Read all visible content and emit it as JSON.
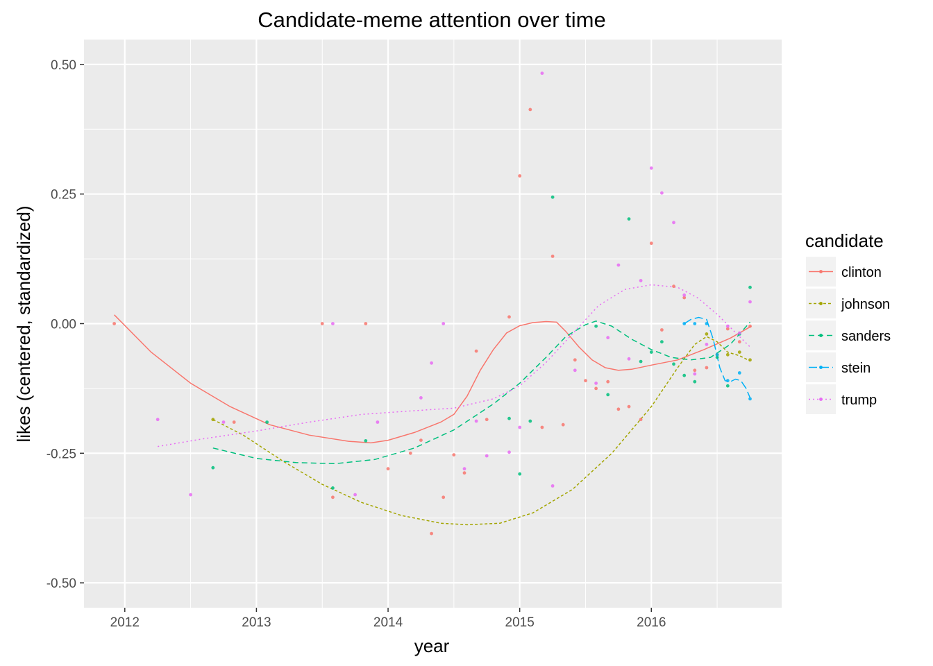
{
  "chart_data": {
    "type": "scatter",
    "title": "Candidate-meme attention over time",
    "xlabel": "year",
    "ylabel": "likes (centered, standardized)",
    "xlim": [
      2011.69,
      2016.99
    ],
    "ylim": [
      -0.548,
      0.548
    ],
    "x_ticks": [
      2012,
      2013,
      2014,
      2015,
      2016
    ],
    "x_tick_labels": [
      "2012",
      "2013",
      "2014",
      "2015",
      "2016"
    ],
    "y_ticks": [
      0.5,
      0.25,
      0.0,
      -0.25,
      -0.5
    ],
    "y_tick_labels": [
      "0.50",
      "0.25",
      "0.00",
      "-0.25",
      "-0.50"
    ],
    "grid": true,
    "legend": {
      "title": "candidate",
      "position": "right"
    },
    "series": [
      {
        "name": "clinton",
        "color": "#F8766D",
        "dash": "none",
        "points": [
          [
            2011.92,
            0.0
          ],
          [
            2012.83,
            -0.19
          ],
          [
            2013.5,
            0.0
          ],
          [
            2013.58,
            -0.335
          ],
          [
            2013.83,
            0.0
          ],
          [
            2014.0,
            -0.28
          ],
          [
            2014.17,
            -0.25
          ],
          [
            2014.25,
            -0.225
          ],
          [
            2014.33,
            -0.405
          ],
          [
            2014.42,
            -0.335
          ],
          [
            2014.5,
            -0.253
          ],
          [
            2014.58,
            -0.288
          ],
          [
            2014.67,
            -0.053
          ],
          [
            2014.75,
            -0.185
          ],
          [
            2014.92,
            0.013
          ],
          [
            2015.0,
            0.285
          ],
          [
            2015.08,
            0.413
          ],
          [
            2015.17,
            -0.2
          ],
          [
            2015.25,
            0.13
          ],
          [
            2015.33,
            -0.195
          ],
          [
            2015.42,
            -0.07
          ],
          [
            2015.5,
            -0.11
          ],
          [
            2015.58,
            -0.125
          ],
          [
            2015.67,
            -0.112
          ],
          [
            2015.75,
            -0.165
          ],
          [
            2015.83,
            -0.16
          ],
          [
            2015.92,
            -0.185
          ],
          [
            2016.0,
            0.155
          ],
          [
            2016.08,
            -0.012
          ],
          [
            2016.17,
            0.072
          ],
          [
            2016.25,
            0.05
          ],
          [
            2016.33,
            -0.09
          ],
          [
            2016.42,
            -0.085
          ],
          [
            2016.5,
            -0.06
          ],
          [
            2016.58,
            -0.01
          ],
          [
            2016.67,
            -0.035
          ],
          [
            2016.75,
            -0.005
          ]
        ],
        "trend": [
          [
            2011.92,
            0.017
          ],
          [
            2012.2,
            -0.055
          ],
          [
            2012.5,
            -0.115
          ],
          [
            2012.8,
            -0.16
          ],
          [
            2013.1,
            -0.195
          ],
          [
            2013.4,
            -0.215
          ],
          [
            2013.7,
            -0.227
          ],
          [
            2013.87,
            -0.23
          ],
          [
            2014.0,
            -0.225
          ],
          [
            2014.2,
            -0.21
          ],
          [
            2014.4,
            -0.19
          ],
          [
            2014.5,
            -0.175
          ],
          [
            2014.6,
            -0.14
          ],
          [
            2014.7,
            -0.09
          ],
          [
            2014.8,
            -0.05
          ],
          [
            2014.9,
            -0.018
          ],
          [
            2015.0,
            -0.004
          ],
          [
            2015.1,
            0.002
          ],
          [
            2015.2,
            0.004
          ],
          [
            2015.28,
            0.003
          ],
          [
            2015.35,
            -0.015
          ],
          [
            2015.45,
            -0.045
          ],
          [
            2015.55,
            -0.07
          ],
          [
            2015.65,
            -0.085
          ],
          [
            2015.75,
            -0.09
          ],
          [
            2015.85,
            -0.088
          ],
          [
            2016.0,
            -0.08
          ],
          [
            2016.2,
            -0.07
          ],
          [
            2016.4,
            -0.05
          ],
          [
            2016.6,
            -0.028
          ],
          [
            2016.76,
            -0.005
          ]
        ]
      },
      {
        "name": "johnson",
        "color": "#A3A500",
        "dash": "4,3",
        "points": [
          [
            2012.67,
            -0.185
          ],
          [
            2016.42,
            -0.02
          ],
          [
            2016.5,
            -0.06
          ],
          [
            2016.58,
            -0.06
          ],
          [
            2016.67,
            -0.055
          ],
          [
            2016.75,
            -0.07
          ]
        ],
        "trend": [
          [
            2012.67,
            -0.185
          ],
          [
            2012.9,
            -0.215
          ],
          [
            2013.2,
            -0.265
          ],
          [
            2013.5,
            -0.31
          ],
          [
            2013.8,
            -0.345
          ],
          [
            2014.1,
            -0.37
          ],
          [
            2014.4,
            -0.385
          ],
          [
            2014.6,
            -0.388
          ],
          [
            2014.85,
            -0.385
          ],
          [
            2015.1,
            -0.365
          ],
          [
            2015.4,
            -0.32
          ],
          [
            2015.7,
            -0.25
          ],
          [
            2016.0,
            -0.16
          ],
          [
            2016.2,
            -0.085
          ],
          [
            2016.33,
            -0.04
          ],
          [
            2016.42,
            -0.025
          ],
          [
            2016.5,
            -0.035
          ],
          [
            2016.58,
            -0.055
          ],
          [
            2016.67,
            -0.062
          ],
          [
            2016.75,
            -0.072
          ]
        ]
      },
      {
        "name": "sanders",
        "color": "#00BF7D",
        "dash": "8,5",
        "points": [
          [
            2012.67,
            -0.278
          ],
          [
            2013.08,
            -0.19
          ],
          [
            2013.58,
            -0.317
          ],
          [
            2013.83,
            -0.226
          ],
          [
            2014.92,
            -0.183
          ],
          [
            2015.0,
            -0.29
          ],
          [
            2015.08,
            -0.188
          ],
          [
            2015.25,
            0.244
          ],
          [
            2015.58,
            -0.005
          ],
          [
            2015.67,
            -0.137
          ],
          [
            2015.83,
            0.202
          ],
          [
            2015.92,
            -0.073
          ],
          [
            2016.0,
            -0.055
          ],
          [
            2016.08,
            -0.035
          ],
          [
            2016.17,
            -0.078
          ],
          [
            2016.25,
            -0.1
          ],
          [
            2016.33,
            -0.112
          ],
          [
            2016.5,
            -0.065
          ],
          [
            2016.58,
            -0.12
          ],
          [
            2016.67,
            -0.02
          ],
          [
            2016.75,
            0.07
          ]
        ],
        "trend": [
          [
            2012.67,
            -0.24
          ],
          [
            2013.0,
            -0.26
          ],
          [
            2013.3,
            -0.268
          ],
          [
            2013.6,
            -0.27
          ],
          [
            2013.9,
            -0.262
          ],
          [
            2014.2,
            -0.24
          ],
          [
            2014.5,
            -0.205
          ],
          [
            2014.8,
            -0.155
          ],
          [
            2015.0,
            -0.115
          ],
          [
            2015.2,
            -0.065
          ],
          [
            2015.35,
            -0.025
          ],
          [
            2015.5,
            -0.002
          ],
          [
            2015.58,
            0.005
          ],
          [
            2015.7,
            -0.005
          ],
          [
            2015.85,
            -0.03
          ],
          [
            2016.0,
            -0.05
          ],
          [
            2016.15,
            -0.065
          ],
          [
            2016.3,
            -0.07
          ],
          [
            2016.45,
            -0.065
          ],
          [
            2016.6,
            -0.04
          ],
          [
            2016.75,
            0.003
          ]
        ]
      },
      {
        "name": "stein",
        "color": "#00B0F6",
        "dash": "12,5",
        "points": [
          [
            2016.25,
            0.0
          ],
          [
            2016.33,
            0.0
          ],
          [
            2016.42,
            0.0
          ],
          [
            2016.5,
            -0.06
          ],
          [
            2016.58,
            -0.11
          ],
          [
            2016.67,
            -0.095
          ],
          [
            2016.75,
            -0.145
          ]
        ],
        "trend": [
          [
            2016.25,
            0.0
          ],
          [
            2016.3,
            0.008
          ],
          [
            2016.36,
            0.012
          ],
          [
            2016.42,
            0.008
          ],
          [
            2016.47,
            -0.03
          ],
          [
            2016.52,
            -0.085
          ],
          [
            2016.56,
            -0.11
          ],
          [
            2016.6,
            -0.112
          ],
          [
            2016.64,
            -0.107
          ],
          [
            2016.68,
            -0.11
          ],
          [
            2016.72,
            -0.125
          ],
          [
            2016.75,
            -0.143
          ]
        ]
      },
      {
        "name": "trump",
        "color": "#E76BF3",
        "dash": "2,4",
        "points": [
          [
            2012.25,
            -0.185
          ],
          [
            2012.5,
            -0.33
          ],
          [
            2012.75,
            -0.19
          ],
          [
            2013.58,
            0.0
          ],
          [
            2013.75,
            -0.33
          ],
          [
            2013.92,
            -0.19
          ],
          [
            2014.25,
            -0.143
          ],
          [
            2014.33,
            -0.076
          ],
          [
            2014.42,
            0.0
          ],
          [
            2014.58,
            -0.28
          ],
          [
            2014.67,
            -0.188
          ],
          [
            2014.75,
            -0.255
          ],
          [
            2014.92,
            -0.248
          ],
          [
            2015.0,
            -0.2
          ],
          [
            2015.17,
            0.483
          ],
          [
            2015.25,
            -0.313
          ],
          [
            2015.42,
            -0.09
          ],
          [
            2015.58,
            -0.115
          ],
          [
            2015.67,
            -0.027
          ],
          [
            2015.75,
            0.113
          ],
          [
            2015.83,
            -0.068
          ],
          [
            2015.92,
            0.083
          ],
          [
            2016.0,
            0.3
          ],
          [
            2016.08,
            0.252
          ],
          [
            2016.17,
            0.195
          ],
          [
            2016.25,
            0.055
          ],
          [
            2016.33,
            -0.097
          ],
          [
            2016.42,
            -0.04
          ],
          [
            2016.58,
            -0.005
          ],
          [
            2016.67,
            -0.018
          ],
          [
            2016.75,
            0.042
          ]
        ],
        "trend": [
          [
            2012.25,
            -0.237
          ],
          [
            2012.6,
            -0.222
          ],
          [
            2013.0,
            -0.207
          ],
          [
            2013.4,
            -0.19
          ],
          [
            2013.8,
            -0.175
          ],
          [
            2014.2,
            -0.168
          ],
          [
            2014.5,
            -0.163
          ],
          [
            2014.8,
            -0.145
          ],
          [
            2015.0,
            -0.12
          ],
          [
            2015.2,
            -0.075
          ],
          [
            2015.4,
            -0.02
          ],
          [
            2015.6,
            0.035
          ],
          [
            2015.8,
            0.066
          ],
          [
            2016.0,
            0.075
          ],
          [
            2016.2,
            0.07
          ],
          [
            2016.35,
            0.05
          ],
          [
            2016.5,
            0.018
          ],
          [
            2016.65,
            -0.02
          ],
          [
            2016.75,
            -0.045
          ]
        ]
      }
    ]
  }
}
